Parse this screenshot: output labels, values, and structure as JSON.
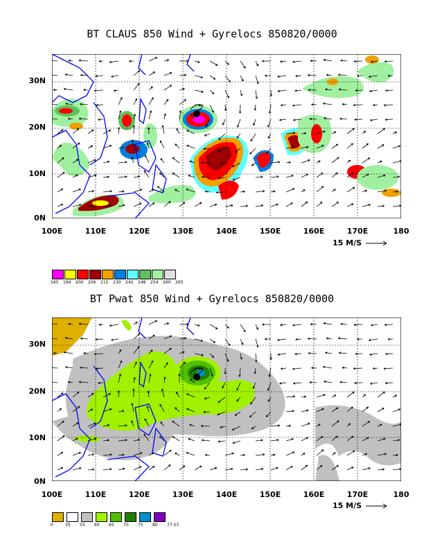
{
  "panel_top": {
    "title": "BT CLAUS 850 Wind + Gyrelocs 850820/0000",
    "legend": [
      {
        "value": "165",
        "color": "#ff00ff"
      },
      {
        "value": "194",
        "color": "#ffff00"
      },
      {
        "value": "200",
        "color": "#ff0000"
      },
      {
        "value": "206",
        "color": "#a00000"
      },
      {
        "value": "215",
        "color": "#f0a000"
      },
      {
        "value": "230",
        "color": "#0080e0"
      },
      {
        "value": "242",
        "color": "#60ffff"
      },
      {
        "value": "248",
        "color": "#60c060"
      },
      {
        "value": "254",
        "color": "#a0f0a0"
      },
      {
        "value": "260",
        "color": "#e0e0e0"
      },
      {
        "value": "265",
        "color": null
      }
    ]
  },
  "panel_bottom": {
    "title": "BT Pwat 850 Wind + Gyrelocs 850820/0000",
    "legend": [
      {
        "value": "0",
        "color": "#e0b000"
      },
      {
        "value": "35",
        "color": "#ffffff"
      },
      {
        "value": "55",
        "color": "#c0c0c0"
      },
      {
        "value": "60",
        "color": "#a0f000"
      },
      {
        "value": "65",
        "color": "#50c000"
      },
      {
        "value": "70",
        "color": "#208000"
      },
      {
        "value": "75",
        "color": "#0090d0"
      },
      {
        "value": "80",
        "color": "#8000c0"
      },
      {
        "value": "77.53",
        "color": null
      }
    ]
  },
  "axes": {
    "y_labels": [
      "30N",
      "20N",
      "10N",
      "0N"
    ],
    "x_labels": [
      "100E",
      "110E",
      "120E",
      "130E",
      "140E",
      "150E",
      "160E",
      "170E",
      "180"
    ]
  },
  "vector_scale": "15 M/S",
  "colors": {
    "coastline": "#0000ff",
    "vectors": "#000000",
    "grid": "#000000"
  }
}
